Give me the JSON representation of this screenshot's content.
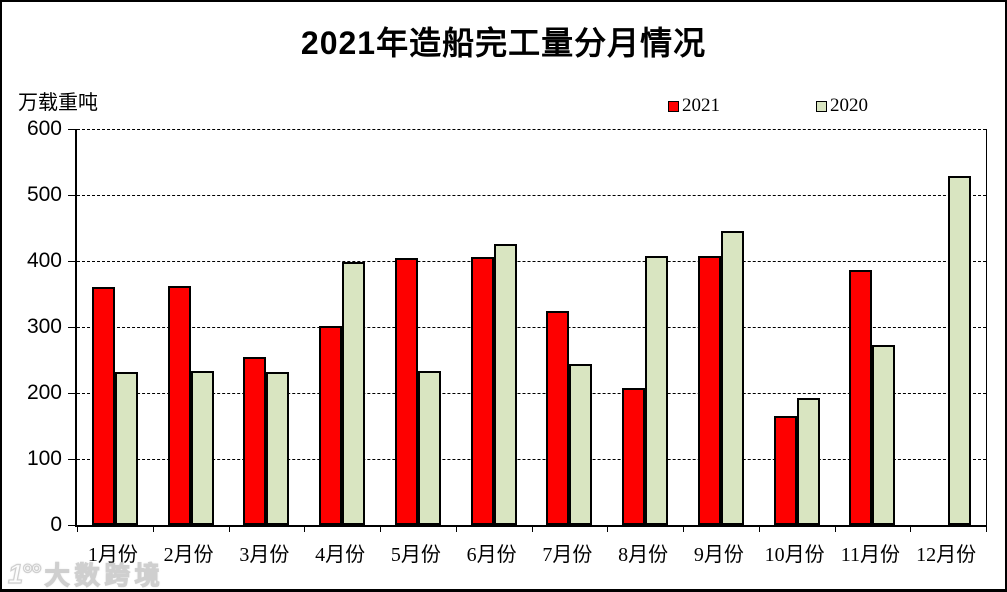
{
  "title": "2021年造船完工量分月情况",
  "y_axis_unit": "万载重吨",
  "watermark": {
    "logo_text": "1°°",
    "brand_text": "大数跨境"
  },
  "chart_data": {
    "type": "bar",
    "title": "2021年造船完工量分月情况",
    "xlabel": "",
    "ylabel": "万载重吨",
    "categories": [
      "1月份",
      "2月份",
      "3月份",
      "4月份",
      "5月份",
      "6月份",
      "7月份",
      "8月份",
      "9月份",
      "10月份",
      "11月份",
      "12月份"
    ],
    "series": [
      {
        "name": "2021",
        "color": "#fe0000",
        "values": [
          360,
          362,
          254,
          301,
          405,
          406,
          325,
          208,
          408,
          165,
          387,
          null
        ]
      },
      {
        "name": "2020",
        "color": "#d9e5c1",
        "values": [
          232,
          234,
          232,
          398,
          234,
          426,
          244,
          407,
          446,
          193,
          272,
          529
        ]
      }
    ],
    "ylim": [
      0,
      600
    ],
    "ytick_interval": 100,
    "yticks": [
      600,
      500,
      400,
      300,
      200,
      100,
      0
    ],
    "grid": "horizontal-dashed",
    "legend_position": "top-right",
    "bar_border_color": "#000000"
  }
}
